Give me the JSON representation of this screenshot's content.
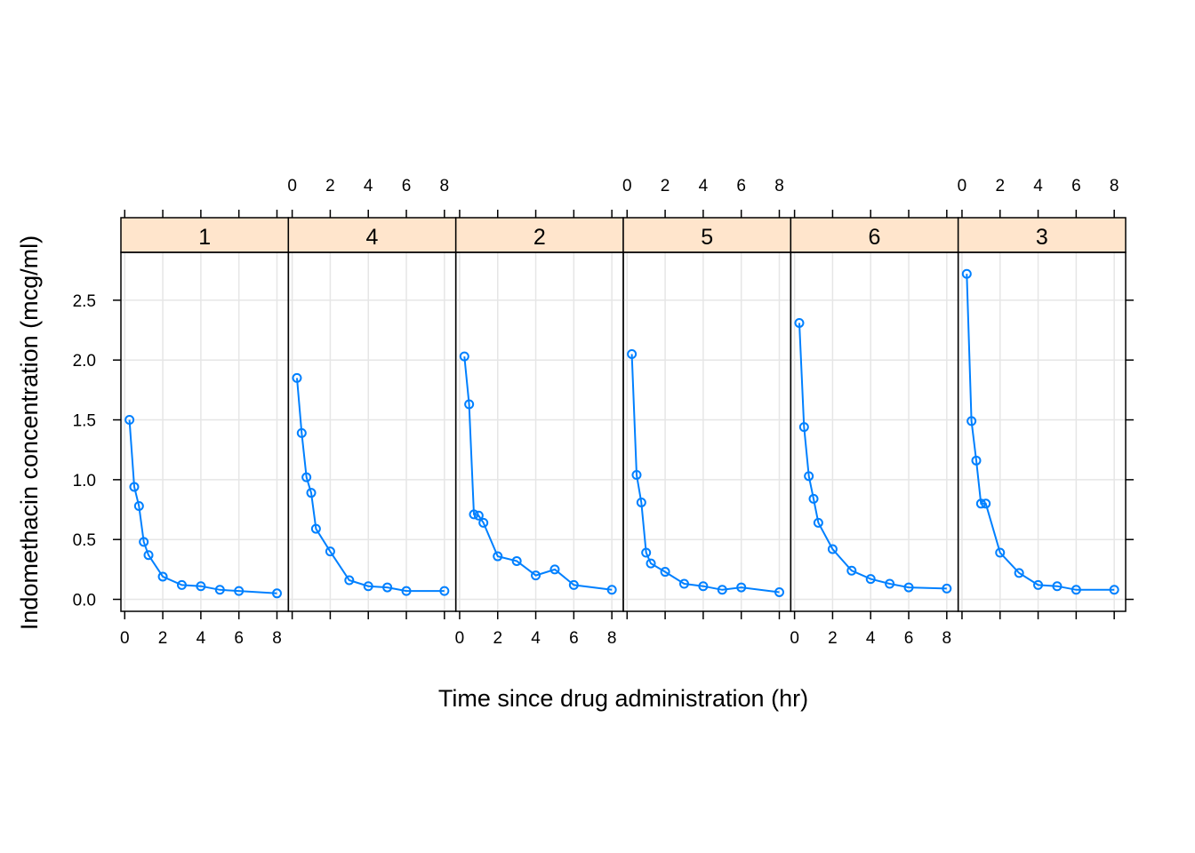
{
  "chart_data": {
    "type": "line",
    "layout": "trellis-panels",
    "xlabel": "Time since drug administration (hr)",
    "ylabel": "Indomethacin concentration (mcg/ml)",
    "xlim": [
      -0.2,
      8.6
    ],
    "ylim": [
      -0.1,
      2.9
    ],
    "x_ticks": [
      0,
      2,
      4,
      6,
      8
    ],
    "y_ticks": [
      0.0,
      0.5,
      1.0,
      1.5,
      2.0,
      2.5
    ],
    "y_tick_labels": [
      "0.0",
      "0.5",
      "1.0",
      "1.5",
      "2.0",
      "2.5"
    ],
    "grid": true,
    "colors": {
      "series": "#0080ff",
      "strip_fill": "#ffe5cc",
      "grid": "#e6e6e6",
      "frame": "#000000"
    },
    "x": [
      0.25,
      0.5,
      0.75,
      1,
      1.25,
      2,
      3,
      4,
      5,
      6,
      8
    ],
    "panels": [
      {
        "label": "1",
        "values": [
          1.5,
          0.94,
          0.78,
          0.48,
          0.37,
          0.19,
          0.12,
          0.11,
          0.08,
          0.07,
          0.05
        ]
      },
      {
        "label": "4",
        "values": [
          1.85,
          1.39,
          1.02,
          0.89,
          0.59,
          0.4,
          0.16,
          0.11,
          0.1,
          0.07,
          0.07
        ]
      },
      {
        "label": "2",
        "values": [
          2.03,
          1.63,
          0.71,
          0.7,
          0.64,
          0.36,
          0.32,
          0.2,
          0.25,
          0.12,
          0.08
        ]
      },
      {
        "label": "5",
        "values": [
          2.05,
          1.04,
          0.81,
          0.39,
          0.3,
          0.23,
          0.13,
          0.11,
          0.08,
          0.1,
          0.06
        ]
      },
      {
        "label": "6",
        "values": [
          2.31,
          1.44,
          1.03,
          0.84,
          0.64,
          0.42,
          0.24,
          0.17,
          0.13,
          0.1,
          0.09
        ]
      },
      {
        "label": "3",
        "values": [
          2.72,
          1.49,
          1.16,
          0.8,
          0.8,
          0.39,
          0.22,
          0.12,
          0.11,
          0.08,
          0.08
        ]
      }
    ]
  }
}
